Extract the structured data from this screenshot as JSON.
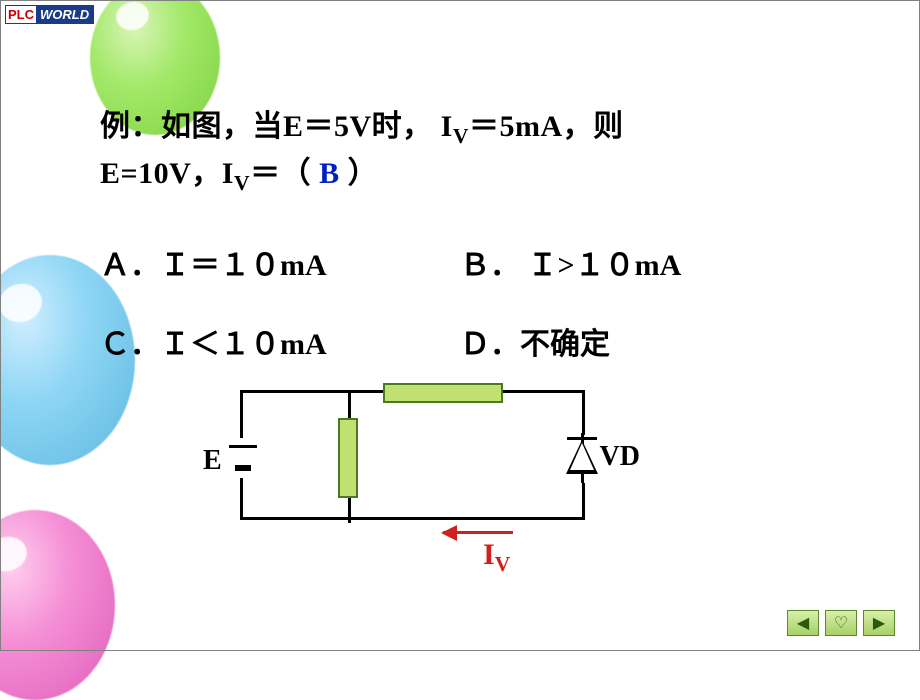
{
  "logo": {
    "left": "PLC",
    "right": "WORLD"
  },
  "text": {
    "line1_a": "例：如图，当E＝5V时， I",
    "line1_sub": "V",
    "line1_b": "＝5mA，则",
    "line2_a": "E=10V，I",
    "line2_sub": "V",
    "line2_b": "＝（ ",
    "answer": "B",
    "line2_c": " ）"
  },
  "options": {
    "A": "Ａ．Ｉ＝１０mA",
    "B": "Ｂ． Ｉ>１０mA",
    "C": "Ｃ．Ｉ＜１０mA",
    "D": "Ｄ．不确定"
  },
  "circuit": {
    "E": "E",
    "VD": "VD",
    "IV_a": "I",
    "IV_sub": "V",
    "wire_color": "#000000",
    "resistor_fill": "#c0e070",
    "resistor_border": "#4a7a20",
    "arrow_color": "#d02020"
  },
  "nav": {
    "prev": "◀",
    "home": "♡",
    "next": "▶"
  },
  "balloons": {
    "green": "#7dd13d",
    "blue": "#5db8e0",
    "pink": "#e05db8"
  }
}
